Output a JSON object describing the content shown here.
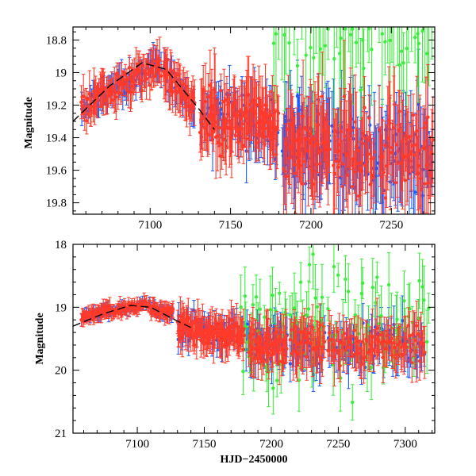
{
  "colors": {
    "blue": "#1a5cff",
    "red": "#ff3a2a",
    "green": "#3cee3c",
    "model": "#000000"
  },
  "chart_data": [
    {
      "type": "scatter",
      "panel": "top",
      "xlabel": "",
      "ylabel": "Magnitude",
      "xlim": [
        7052,
        7277
      ],
      "ylim": [
        19.87,
        18.72
      ],
      "y_inverted": true,
      "xticks": [
        7100,
        7150,
        7200,
        7250
      ],
      "yticks": [
        18.8,
        19,
        19.2,
        19.4,
        19.6,
        19.8
      ],
      "ytick_labels": [
        "18.8",
        "19",
        "19.2",
        "19.4",
        "19.6",
        "19.8"
      ],
      "series": [
        {
          "name": "blue",
          "color": "#1a5cff",
          "segments": [
            {
              "x0": 7057,
              "x1": 7107,
              "n": 55,
              "base": [
                19.2,
                18.95
              ],
              "scatter": 0.07,
              "err": 0.07
            },
            {
              "x0": 7108,
              "x1": 7128,
              "n": 22,
              "base": [
                19.0,
                19.2
              ],
              "scatter": 0.08,
              "err": 0.08
            },
            {
              "x0": 7131,
              "x1": 7180,
              "n": 60,
              "base": [
                19.25,
                19.35
              ],
              "scatter": 0.14,
              "err": 0.13
            },
            {
              "x0": 7182,
              "x1": 7212,
              "n": 55,
              "base": [
                19.45,
                19.45
              ],
              "scatter": 0.22,
              "err": 0.2
            },
            {
              "x0": 7213,
              "x1": 7276,
              "n": 80,
              "base": [
                19.5,
                19.5
              ],
              "scatter": 0.25,
              "err": 0.22
            }
          ]
        },
        {
          "name": "red",
          "color": "#ff3a2a",
          "segments": [
            {
              "x0": 7057,
              "x1": 7107,
              "n": 90,
              "base": [
                19.2,
                18.95
              ],
              "scatter": 0.07,
              "err": 0.09
            },
            {
              "x0": 7108,
              "x1": 7128,
              "n": 40,
              "base": [
                19.0,
                19.2
              ],
              "scatter": 0.08,
              "err": 0.1
            },
            {
              "x0": 7131,
              "x1": 7180,
              "n": 110,
              "base": [
                19.3,
                19.3
              ],
              "scatter": 0.16,
              "err": 0.16
            },
            {
              "x0": 7183,
              "x1": 7212,
              "n": 55,
              "base": [
                19.45,
                19.45
              ],
              "scatter": 0.22,
              "err": 0.22
            },
            {
              "x0": 7214,
              "x1": 7240,
              "n": 45,
              "base": [
                19.5,
                19.5
              ],
              "scatter": 0.22,
              "err": 0.22
            },
            {
              "x0": 7242,
              "x1": 7276,
              "n": 55,
              "base": [
                19.5,
                19.5
              ],
              "scatter": 0.24,
              "err": 0.22
            }
          ]
        },
        {
          "name": "green",
          "color": "#3cee3c",
          "segments": [
            {
              "x0": 7176,
              "x1": 7212,
              "n": 22,
              "base": [
                18.7,
                18.7
              ],
              "scatter": 0.25,
              "err": 0.3
            },
            {
              "x0": 7214,
              "x1": 7240,
              "n": 18,
              "base": [
                18.7,
                18.7
              ],
              "scatter": 0.25,
              "err": 0.3
            },
            {
              "x0": 7242,
              "x1": 7276,
              "n": 22,
              "base": [
                18.7,
                18.7
              ],
              "scatter": 0.25,
              "err": 0.3
            }
          ]
        }
      ],
      "model": [
        [
          7052,
          19.3
        ],
        [
          7075,
          19.08
        ],
        [
          7095,
          18.94
        ],
        [
          7110,
          18.98
        ],
        [
          7130,
          19.22
        ],
        [
          7140,
          19.35
        ]
      ]
    },
    {
      "type": "scatter",
      "panel": "bottom",
      "xlabel": "HJD−2450000",
      "ylabel": "Magnitude",
      "xlim": [
        7052,
        7322
      ],
      "ylim": [
        21,
        18
      ],
      "y_inverted": true,
      "xticks": [
        7100,
        7150,
        7200,
        7250,
        7300
      ],
      "yticks": [
        18,
        19,
        20,
        21
      ],
      "ytick_labels": [
        "18",
        "19",
        "20",
        "21"
      ],
      "series": [
        {
          "name": "blue",
          "color": "#1a5cff",
          "segments": [
            {
              "x0": 7058,
              "x1": 7107,
              "n": 55,
              "base": [
                19.15,
                18.95
              ],
              "scatter": 0.06,
              "err": 0.07
            },
            {
              "x0": 7108,
              "x1": 7127,
              "n": 22,
              "base": [
                19.0,
                19.1
              ],
              "scatter": 0.08,
              "err": 0.08
            },
            {
              "x0": 7130,
              "x1": 7180,
              "n": 55,
              "base": [
                19.35,
                19.45
              ],
              "scatter": 0.18,
              "err": 0.18
            },
            {
              "x0": 7181,
              "x1": 7212,
              "n": 45,
              "base": [
                19.6,
                19.6
              ],
              "scatter": 0.3,
              "err": 0.25
            },
            {
              "x0": 7214,
              "x1": 7240,
              "n": 35,
              "base": [
                19.6,
                19.6
              ],
              "scatter": 0.3,
              "err": 0.25
            },
            {
              "x0": 7242,
              "x1": 7315,
              "n": 70,
              "base": [
                19.6,
                19.6
              ],
              "scatter": 0.3,
              "err": 0.25
            }
          ]
        },
        {
          "name": "red",
          "color": "#ff3a2a",
          "segments": [
            {
              "x0": 7058,
              "x1": 7107,
              "n": 90,
              "base": [
                19.15,
                18.95
              ],
              "scatter": 0.07,
              "err": 0.09
            },
            {
              "x0": 7108,
              "x1": 7127,
              "n": 35,
              "base": [
                19.0,
                19.1
              ],
              "scatter": 0.08,
              "err": 0.1
            },
            {
              "x0": 7130,
              "x1": 7180,
              "n": 110,
              "base": [
                19.35,
                19.45
              ],
              "scatter": 0.18,
              "err": 0.22
            },
            {
              "x0": 7183,
              "x1": 7212,
              "n": 50,
              "base": [
                19.6,
                19.6
              ],
              "scatter": 0.25,
              "err": 0.3
            },
            {
              "x0": 7214,
              "x1": 7240,
              "n": 40,
              "base": [
                19.6,
                19.6
              ],
              "scatter": 0.25,
              "err": 0.3
            },
            {
              "x0": 7242,
              "x1": 7315,
              "n": 90,
              "base": [
                19.6,
                19.6
              ],
              "scatter": 0.25,
              "err": 0.3
            }
          ]
        },
        {
          "name": "green",
          "color": "#3cee3c",
          "segments": [
            {
              "x0": 7176,
              "x1": 7212,
              "n": 30,
              "base": [
                19.4,
                19.4
              ],
              "scatter": 0.9,
              "err": 0.35
            },
            {
              "x0": 7214,
              "x1": 7240,
              "n": 22,
              "base": [
                19.4,
                19.4
              ],
              "scatter": 0.9,
              "err": 0.35
            },
            {
              "x0": 7242,
              "x1": 7318,
              "n": 50,
              "base": [
                19.3,
                19.3
              ],
              "scatter": 0.9,
              "err": 0.35
            }
          ]
        }
      ],
      "model": [
        [
          7052,
          19.3
        ],
        [
          7075,
          19.1
        ],
        [
          7095,
          18.97
        ],
        [
          7110,
          19.0
        ],
        [
          7130,
          19.22
        ],
        [
          7140,
          19.32
        ]
      ]
    }
  ]
}
